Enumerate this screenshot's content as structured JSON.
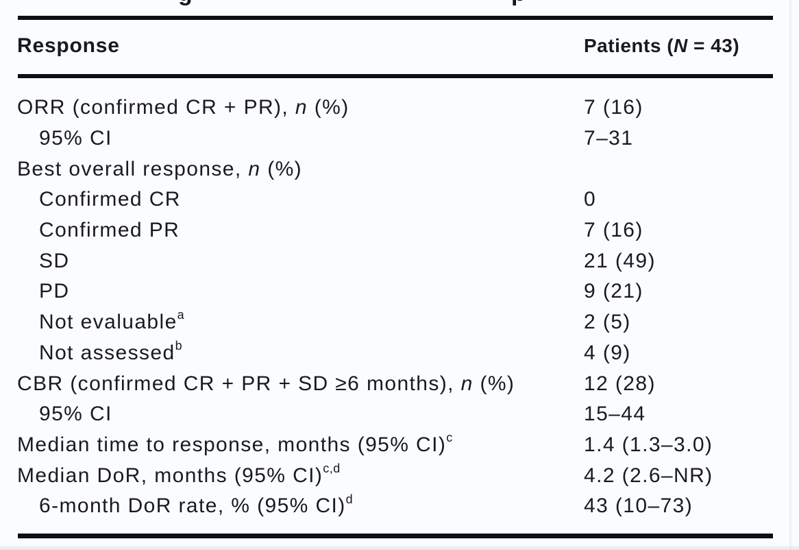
{
  "figure": {
    "clipped_caption_fragments": [
      {
        "glyph": "g"
      },
      {
        "glyph": "p"
      }
    ]
  },
  "table": {
    "header": {
      "col1": "Response",
      "col2_pre": "Patients (",
      "col2_italic": "N",
      "col2_post": " = 43)"
    },
    "rows": [
      {
        "pre": "ORR (confirmed CR + PR), ",
        "italic": "n",
        "post": " (%)",
        "sup": "",
        "indent": 0,
        "value": "7 (16)"
      },
      {
        "pre": "95% CI",
        "italic": "",
        "post": "",
        "sup": "",
        "indent": 1,
        "value": "7–31"
      },
      {
        "pre": "Best overall response, ",
        "italic": "n",
        "post": " (%)",
        "sup": "",
        "indent": 0,
        "value": ""
      },
      {
        "pre": "Confirmed CR",
        "italic": "",
        "post": "",
        "sup": "",
        "indent": 1,
        "value": "0"
      },
      {
        "pre": "Confirmed PR",
        "italic": "",
        "post": "",
        "sup": "",
        "indent": 1,
        "value": "7 (16)"
      },
      {
        "pre": "SD",
        "italic": "",
        "post": "",
        "sup": "",
        "indent": 1,
        "value": "21 (49)"
      },
      {
        "pre": "PD",
        "italic": "",
        "post": "",
        "sup": "",
        "indent": 1,
        "value": "9 (21)"
      },
      {
        "pre": "Not evaluable",
        "italic": "",
        "post": "",
        "sup": "a",
        "indent": 1,
        "value": "2 (5)"
      },
      {
        "pre": "Not assessed",
        "italic": "",
        "post": "",
        "sup": "b",
        "indent": 1,
        "value": "4 (9)"
      },
      {
        "pre": "CBR (confirmed CR + PR + SD ≥6 months), ",
        "italic": "n",
        "post": " (%)",
        "sup": "",
        "indent": 0,
        "value": "12 (28)"
      },
      {
        "pre": "95% CI",
        "italic": "",
        "post": "",
        "sup": "",
        "indent": 1,
        "value": "15–44"
      },
      {
        "pre": "Median time to response, months (95% CI)",
        "italic": "",
        "post": "",
        "sup": "c",
        "indent": 0,
        "value": "1.4 (1.3–3.0)"
      },
      {
        "pre": "Median DoR, months (95% CI)",
        "italic": "",
        "post": "",
        "sup": "c,d",
        "indent": 0,
        "value": "4.2 (2.6–NR)"
      },
      {
        "pre": "6-month DoR rate, % (95% CI)",
        "italic": "",
        "post": "",
        "sup": "d",
        "indent": 1,
        "value": "43 (10–73)"
      }
    ]
  },
  "colors": {
    "background": "#fbfcff",
    "text": "#191923",
    "rule": "#0e0e16",
    "edge_line": "#f1f2ea"
  }
}
